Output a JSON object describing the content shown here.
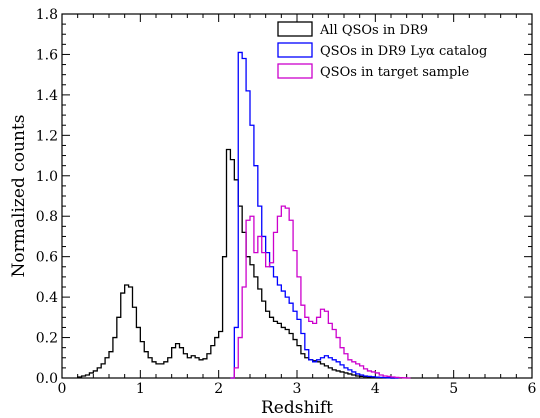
{
  "chart_data": {
    "type": "line",
    "xlabel": "Redshift",
    "ylabel": "Normalized counts",
    "xlim": [
      0,
      6
    ],
    "ylim": [
      0,
      1.8
    ],
    "x_ticks": [
      "0",
      "1",
      "2",
      "3",
      "4",
      "5",
      "6"
    ],
    "y_ticks": [
      "0.0",
      "0.2",
      "0.4",
      "0.6",
      "0.8",
      "1.0",
      "1.2",
      "1.4",
      "1.6",
      "1.8"
    ],
    "legend_position": "top-right",
    "grid": false,
    "bin_width": 0.05,
    "series": [
      {
        "name": "All QSOs in DR9",
        "color": "#000000",
        "start": 0.2,
        "values": [
          0.005,
          0.01,
          0.015,
          0.025,
          0.035,
          0.05,
          0.07,
          0.1,
          0.13,
          0.2,
          0.3,
          0.42,
          0.46,
          0.45,
          0.35,
          0.25,
          0.18,
          0.13,
          0.1,
          0.08,
          0.07,
          0.07,
          0.08,
          0.1,
          0.15,
          0.17,
          0.15,
          0.12,
          0.1,
          0.11,
          0.1,
          0.09,
          0.095,
          0.12,
          0.16,
          0.2,
          0.23,
          0.6,
          1.13,
          1.08,
          0.98,
          0.85,
          0.72,
          0.6,
          0.56,
          0.5,
          0.44,
          0.38,
          0.33,
          0.3,
          0.28,
          0.27,
          0.25,
          0.24,
          0.22,
          0.19,
          0.16,
          0.12,
          0.1,
          0.09,
          0.085,
          0.08,
          0.07,
          0.06,
          0.05,
          0.04,
          0.035,
          0.03,
          0.025,
          0.02,
          0.015,
          0.01,
          0.008,
          0.006,
          0.005,
          0.004,
          0.003,
          0.002,
          0.001,
          0.001,
          0.0
        ]
      },
      {
        "name": "QSOs in DR9 Lyα catalog",
        "color": "#0000ff",
        "start": 2.15,
        "values": [
          0.0,
          0.25,
          1.61,
          1.58,
          1.42,
          1.25,
          1.05,
          0.85,
          0.7,
          0.62,
          0.55,
          0.5,
          0.46,
          0.43,
          0.4,
          0.37,
          0.33,
          0.29,
          0.22,
          0.14,
          0.09,
          0.08,
          0.09,
          0.1,
          0.11,
          0.1,
          0.09,
          0.08,
          0.065,
          0.05,
          0.04,
          0.03,
          0.02,
          0.015,
          0.01,
          0.008,
          0.006,
          0.004,
          0.003,
          0.002,
          0.001,
          0.0,
          0.0
        ]
      },
      {
        "name": "QSOs in target sample",
        "color": "#cc00cc",
        "start": 2.15,
        "values": [
          0.0,
          0.05,
          0.2,
          0.45,
          0.78,
          0.8,
          0.62,
          0.7,
          0.62,
          0.55,
          0.57,
          0.72,
          0.8,
          0.85,
          0.84,
          0.78,
          0.63,
          0.5,
          0.36,
          0.3,
          0.28,
          0.27,
          0.3,
          0.34,
          0.33,
          0.27,
          0.24,
          0.2,
          0.15,
          0.12,
          0.09,
          0.08,
          0.07,
          0.06,
          0.045,
          0.035,
          0.03,
          0.025,
          0.015,
          0.01,
          0.008,
          0.005,
          0.003,
          0.002,
          0.001,
          0.0
        ]
      }
    ]
  }
}
